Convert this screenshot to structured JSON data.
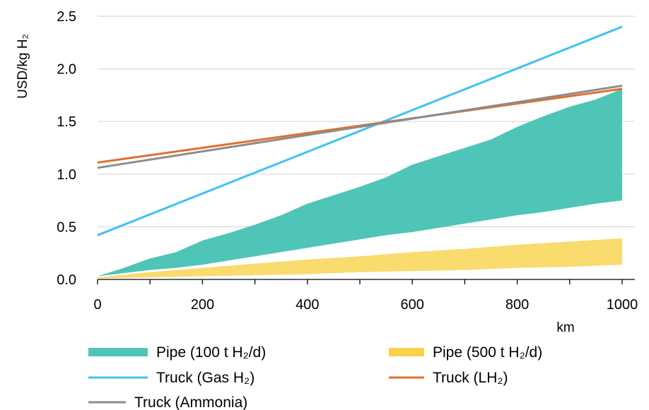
{
  "chart_data": {
    "type": "area",
    "ylabel": "USD/kg H₂",
    "xlabel": "km",
    "xlim": [
      0,
      1000
    ],
    "ylim": [
      0,
      2.5
    ],
    "x_ticks": [
      "0",
      "200",
      "400",
      "600",
      "800",
      "1000"
    ],
    "y_ticks": [
      "0.0",
      "0.5",
      "1.0",
      "1.5",
      "2.0",
      "2.5"
    ],
    "grid": "horizontal",
    "legend_position": "bottom",
    "bands": [
      {
        "name": "Pipe (100 t H₂/d)",
        "color": "#4fc5b8",
        "x": [
          0,
          50,
          100,
          150,
          200,
          250,
          300,
          350,
          400,
          450,
          500,
          550,
          600,
          650,
          700,
          750,
          800,
          850,
          900,
          950,
          1000
        ],
        "upper": [
          0.03,
          0.11,
          0.2,
          0.26,
          0.37,
          0.44,
          0.52,
          0.61,
          0.72,
          0.8,
          0.88,
          0.97,
          1.09,
          1.17,
          1.25,
          1.33,
          1.45,
          1.55,
          1.64,
          1.71,
          1.81
        ],
        "lower": [
          0.03,
          0.06,
          0.09,
          0.11,
          0.14,
          0.18,
          0.22,
          0.26,
          0.3,
          0.34,
          0.38,
          0.42,
          0.45,
          0.49,
          0.53,
          0.57,
          0.61,
          0.64,
          0.68,
          0.72,
          0.75
        ]
      },
      {
        "name": "Pipe (500 t H₂/d)",
        "color": "#f7d24a",
        "x": [
          0,
          100,
          200,
          300,
          400,
          500,
          600,
          700,
          800,
          900,
          1000
        ],
        "upper": [
          0.02,
          0.07,
          0.11,
          0.15,
          0.19,
          0.22,
          0.26,
          0.29,
          0.33,
          0.36,
          0.39
        ],
        "lower": [
          0.01,
          0.02,
          0.03,
          0.04,
          0.05,
          0.07,
          0.08,
          0.09,
          0.11,
          0.12,
          0.14
        ]
      }
    ],
    "series": [
      {
        "name": "Truck (Gas H₂)",
        "color": "#3fc2f0",
        "x": [
          0,
          1000
        ],
        "values": [
          0.42,
          2.4
        ]
      },
      {
        "name": "Truck (LH₂)",
        "color": "#e0702b",
        "x": [
          0,
          1000
        ],
        "values": [
          1.11,
          1.81
        ]
      },
      {
        "name": "Truck (Ammonia)",
        "color": "#8c8c8c",
        "x": [
          0,
          1000
        ],
        "values": [
          1.06,
          1.84
        ]
      }
    ]
  }
}
